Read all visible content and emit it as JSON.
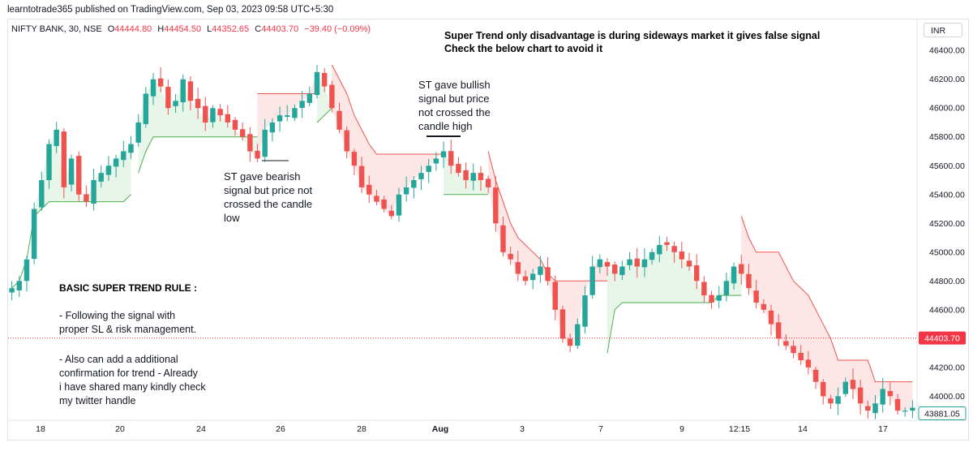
{
  "header": {
    "published": "learntotrade365 published on TradingView.com, Sep 03, 2023 09:58 UTC+5:30",
    "symbol": "NIFTY BANK, 30, NSE",
    "o_label": "O",
    "o_value": "44444.80",
    "h_label": "H",
    "h_value": "44454.50",
    "l_label": "L",
    "l_value": "44352.65",
    "c_label": "C",
    "c_value": "44403.70",
    "change": "−39.40 (−0.09%)",
    "currency": "INR"
  },
  "annotations": {
    "title_line1": "Super Trend only disadvantage is during sideways market it gives false signal",
    "title_line2": "Check the below chart to avoid it",
    "bearish_note": [
      "ST gave bearish",
      "signal but price not",
      "crossed the candle",
      "low"
    ],
    "bullish_note": [
      "ST gave bullish",
      "signal but price",
      "not crossed the",
      "candle high"
    ],
    "rule_title": "BASIC SUPER TREND RULE :",
    "rule_1": [
      "- Following the signal with",
      "proper SL & risk management."
    ],
    "rule_2": [
      "- Also can add a additional",
      "confirmation for trend - Already",
      "i have shared many kindly check",
      "my twitter handle"
    ]
  },
  "colors": {
    "up": "#26a69a",
    "down": "#ef5350",
    "supertrend_up": "#4caf50",
    "supertrend_down": "#ef5350",
    "fill_up": "#e8f5e9",
    "fill_down": "#fde6e6",
    "last_price_tag": "#f23645",
    "prev_price_tag": "#ffffff"
  },
  "chart_data": {
    "type": "candlestick",
    "x_tick_labels": [
      "18",
      "20",
      "24",
      "26",
      "28",
      "Aug",
      "3",
      "7",
      "9",
      "12:15",
      "14",
      "17"
    ],
    "y_ticks": [
      44000,
      44200,
      44400,
      44600,
      44800,
      45000,
      45200,
      45400,
      45600,
      45800,
      46000,
      46200,
      46400
    ],
    "y_tick_labels": [
      "44000.00",
      "44200.00",
      "44400.00",
      "44600.00",
      "44800.00",
      "45000.00",
      "45200.00",
      "45400.00",
      "45600.00",
      "45800.00",
      "46000.00",
      "46200.00",
      "46400.00"
    ],
    "ylim": [
      43850,
      46480
    ],
    "last_price": 44403.7,
    "last_price_label": "44403.70",
    "lower_price_label": "43881.05",
    "price_path": [
      44750,
      44800,
      44950,
      45300,
      45500,
      45750,
      45850,
      45450,
      45650,
      45400,
      45350,
      45500,
      45550,
      45600,
      45650,
      45700,
      45750,
      45900,
      46100,
      46200,
      46150,
      46000,
      46050,
      46200,
      46050,
      46000,
      45900,
      46000,
      45950,
      45900,
      45850,
      45800,
      45700,
      45650,
      45850,
      45900,
      45950,
      45950,
      46000,
      46050,
      46100,
      46250,
      46150,
      46000,
      45850,
      45700,
      45600,
      45450,
      45400,
      45350,
      45300,
      45250,
      45400,
      45450,
      45500,
      45550,
      45600,
      45650,
      45700,
      45600,
      45550,
      45500,
      45550,
      45500,
      45450,
      45200,
      45000,
      44950,
      44850,
      44800,
      44850,
      44900,
      44800,
      44600,
      44400,
      44350,
      44500,
      44700,
      44900,
      44950,
      44900,
      44850,
      44900,
      44950,
      44900,
      44950,
      45000,
      45050,
      45050,
      45000,
      44950,
      44900,
      44800,
      44700,
      44650,
      44700,
      44800,
      44900,
      44850,
      44750,
      44650,
      44600,
      44500,
      44400,
      44350,
      44300,
      44250,
      44200,
      44100,
      44000,
      43950,
      44000,
      44100,
      44050,
      43950,
      43900,
      43950,
      44050,
      44000,
      43900,
      43900,
      43920
    ],
    "supertrend": [
      {
        "dir": "up",
        "from": 0,
        "to": 16,
        "levels": [
          44750,
          44800,
          44950,
          45250,
          45300,
          45350,
          45350,
          45350,
          45350,
          45350,
          45350,
          45350,
          45350,
          45350,
          45350,
          45350,
          45400
        ]
      },
      {
        "dir": "up",
        "from": 17,
        "to": 33,
        "levels": [
          45550,
          45700,
          45800,
          45800,
          45800,
          45800,
          45800,
          45800,
          45800,
          45800,
          45800,
          45800,
          45800,
          45800,
          45800,
          45800,
          45800
        ]
      },
      {
        "dir": "down",
        "from": 33,
        "to": 41,
        "levels": [
          46100,
          46100,
          46100,
          46100,
          46100,
          46100,
          46100,
          46100,
          46100
        ]
      },
      {
        "dir": "up",
        "from": 41,
        "to": 43,
        "levels": [
          45900,
          45950,
          46000
        ]
      },
      {
        "dir": "down",
        "from": 43,
        "to": 58,
        "levels": [
          46300,
          46200,
          46100,
          45950,
          45850,
          45750,
          45680,
          45680,
          45680,
          45680,
          45680,
          45680,
          45680,
          45680,
          45680,
          45680
        ]
      },
      {
        "dir": "up",
        "from": 58,
        "to": 64,
        "levels": [
          45400,
          45400,
          45400,
          45400,
          45400,
          45400,
          45400
        ]
      },
      {
        "dir": "down",
        "from": 64,
        "to": 80,
        "levels": [
          45700,
          45500,
          45350,
          45200,
          45100,
          45050,
          45000,
          44950,
          44850,
          44800,
          44800,
          44800,
          44800,
          44800,
          44800,
          44800,
          44800
        ]
      },
      {
        "dir": "up",
        "from": 80,
        "to": 98,
        "levels": [
          44300,
          44600,
          44650,
          44650,
          44650,
          44650,
          44650,
          44650,
          44650,
          44650,
          44650,
          44650,
          44650,
          44650,
          44650,
          44700,
          44700,
          44700,
          44700
        ]
      },
      {
        "dir": "down",
        "from": 98,
        "to": 121,
        "levels": [
          45250,
          45100,
          45000,
          45000,
          45000,
          45000,
          44900,
          44800,
          44750,
          44700,
          44600,
          44500,
          44400,
          44250,
          44250,
          44250,
          44250,
          44250,
          44100,
          44100,
          44100,
          44100,
          44100,
          44100
        ]
      }
    ]
  }
}
